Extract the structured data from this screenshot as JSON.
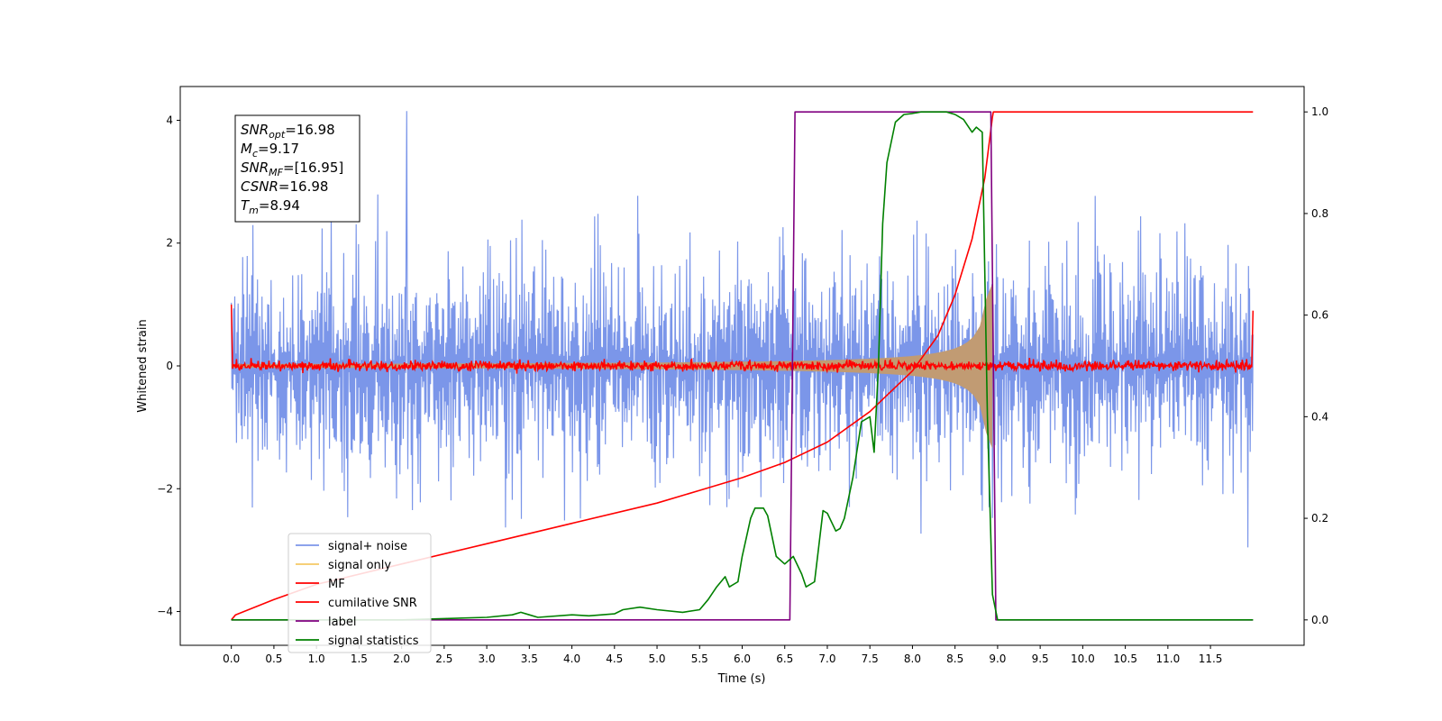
{
  "chart_data": {
    "type": "line",
    "xlabel": "Time (s)",
    "ylabel": "Whitened strain",
    "xlim": [
      -0.6,
      12.6
    ],
    "ylim": [
      -4.55,
      4.55
    ],
    "y2lim": [
      -0.05,
      1.05
    ],
    "x_ticks": [
      0.0,
      0.5,
      1.0,
      1.5,
      2.0,
      2.5,
      3.0,
      3.5,
      4.0,
      4.5,
      5.0,
      5.5,
      6.0,
      6.5,
      7.0,
      7.5,
      8.0,
      8.5,
      9.0,
      9.5,
      10.0,
      10.5,
      11.0,
      11.5
    ],
    "x_tick_labels": [
      "0.0",
      "0.5",
      "1.0",
      "1.5",
      "2.0",
      "2.5",
      "3.0",
      "3.5",
      "4.0",
      "4.5",
      "5.0",
      "5.5",
      "6.0",
      "6.5",
      "7.0",
      "7.5",
      "8.0",
      "8.5",
      "9.0",
      "9.5",
      "10.0",
      "10.5",
      "11.0",
      "11.5"
    ],
    "y_ticks": [
      -4,
      -2,
      0,
      2,
      4
    ],
    "y_tick_labels": [
      "−4",
      "−2",
      "0",
      "2",
      "4"
    ],
    "y2_ticks": [
      0.0,
      0.2,
      0.4,
      0.6,
      0.8,
      1.0
    ],
    "y2_tick_labels": [
      "0.0",
      "0.2",
      "0.4",
      "0.6",
      "0.8",
      "1.0"
    ],
    "grid": false,
    "legend_position": "lower-left",
    "annotation": {
      "lines": [
        {
          "sym": "SNR",
          "sub": "opt",
          "rest": "=16.98"
        },
        {
          "sym": "M",
          "sub": "c",
          "rest": "=9.17"
        },
        {
          "sym": "SNR",
          "sub": "MF",
          "rest": "=[16.95]"
        },
        {
          "sym": "CSNR",
          "sub": "",
          "rest": "=16.98"
        },
        {
          "sym": "T",
          "sub": "m",
          "rest": "=8.94"
        }
      ]
    },
    "series": [
      {
        "name": "signal+ noise",
        "color": "#7b96e9",
        "axis": "left",
        "kind": "noise",
        "duration": 12.0,
        "std": 0.95,
        "peak_value": 4.15
      },
      {
        "name": "signal only",
        "color": "#f5c865",
        "axis": "left",
        "kind": "chirp",
        "t_start": 0.0,
        "t_end": 8.94,
        "amp_start": 0.03,
        "amp_end": 1.35,
        "display_color": "#c19b73"
      },
      {
        "name": "MF",
        "color": "#ff0000",
        "axis": "left",
        "kind": "mf",
        "duration": 12.0,
        "level": 0.0,
        "std": 0.04,
        "edge_left": 1.0,
        "edge_right": 0.9
      },
      {
        "name": "cumilative SNR",
        "color": "#ff0000",
        "axis": "right",
        "x": [
          0.0,
          0.05,
          0.5,
          1.0,
          2.0,
          3.0,
          4.0,
          5.0,
          5.5,
          6.0,
          6.5,
          7.0,
          7.5,
          8.0,
          8.3,
          8.5,
          8.7,
          8.85,
          8.94,
          8.95,
          12.0
        ],
        "values": [
          0.0,
          0.01,
          0.04,
          0.07,
          0.11,
          0.15,
          0.19,
          0.23,
          0.255,
          0.28,
          0.31,
          0.35,
          0.41,
          0.49,
          0.56,
          0.64,
          0.75,
          0.87,
          0.99,
          1.0,
          1.0
        ]
      },
      {
        "name": "label",
        "color": "#800080",
        "axis": "right",
        "x": [
          0.0,
          6.56,
          6.62,
          8.92,
          8.98,
          12.0
        ],
        "values": [
          0.0,
          0.0,
          1.0,
          1.0,
          0.0,
          0.0
        ]
      },
      {
        "name": "signal statistics",
        "color": "#008000",
        "axis": "right",
        "x": [
          0.0,
          0.5,
          1.0,
          2.0,
          3.0,
          3.3,
          3.4,
          3.5,
          3.6,
          4.0,
          4.2,
          4.5,
          4.6,
          4.8,
          5.0,
          5.3,
          5.5,
          5.6,
          5.7,
          5.8,
          5.85,
          5.95,
          6.0,
          6.1,
          6.15,
          6.25,
          6.3,
          6.4,
          6.5,
          6.6,
          6.7,
          6.75,
          6.85,
          6.9,
          6.95,
          7.0,
          7.1,
          7.15,
          7.2,
          7.3,
          7.4,
          7.5,
          7.55,
          7.6,
          7.65,
          7.7,
          7.75,
          7.8,
          7.9,
          8.0,
          8.1,
          8.2,
          8.4,
          8.5,
          8.6,
          8.7,
          8.75,
          8.82,
          8.88,
          8.94,
          9.0,
          12.0
        ],
        "values": [
          0.0,
          0.0,
          0.0,
          0.0,
          0.005,
          0.01,
          0.015,
          0.01,
          0.005,
          0.01,
          0.008,
          0.012,
          0.02,
          0.025,
          0.02,
          0.015,
          0.02,
          0.04,
          0.065,
          0.085,
          0.065,
          0.075,
          0.125,
          0.2,
          0.22,
          0.22,
          0.205,
          0.125,
          0.11,
          0.125,
          0.09,
          0.065,
          0.075,
          0.145,
          0.215,
          0.21,
          0.175,
          0.18,
          0.2,
          0.28,
          0.39,
          0.4,
          0.33,
          0.5,
          0.78,
          0.9,
          0.94,
          0.98,
          0.995,
          0.997,
          1.0,
          1.0,
          1.0,
          0.995,
          0.985,
          0.96,
          0.97,
          0.96,
          0.4,
          0.05,
          0.0,
          0.0
        ]
      }
    ]
  }
}
